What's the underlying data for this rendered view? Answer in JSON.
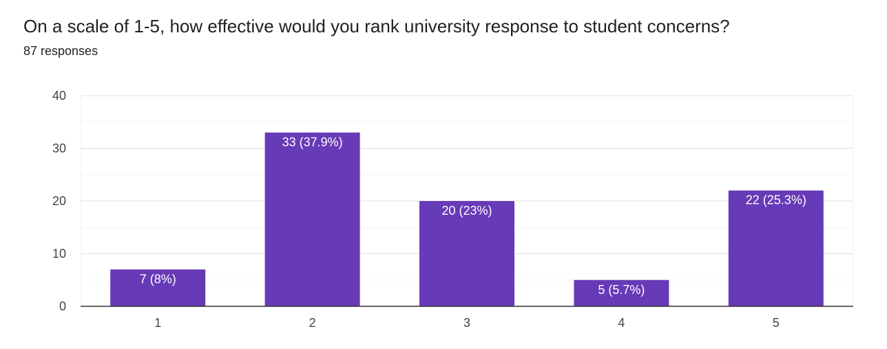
{
  "question": {
    "title": "On a scale of 1-5, how effective would you rank university response to student concerns?",
    "responses": "87 responses"
  },
  "colors": {
    "bar": "#673ab7",
    "grid_major": "#e0e0e0",
    "grid_minor": "#f3f3f3",
    "axis": "#333333"
  },
  "chart_data": {
    "type": "bar",
    "categories": [
      "1",
      "2",
      "3",
      "4",
      "5"
    ],
    "values": [
      7,
      33,
      20,
      5,
      22
    ],
    "data_labels": [
      "7 (8%)",
      "33 (37.9%)",
      "20 (23%)",
      "5 (5.7%)",
      "22 (25.3%)"
    ],
    "y_ticks": [
      0,
      10,
      20,
      30,
      40
    ],
    "ylim": [
      0,
      40
    ],
    "grid": true,
    "legend": "none",
    "title": "",
    "xlabel": "",
    "ylabel": ""
  }
}
